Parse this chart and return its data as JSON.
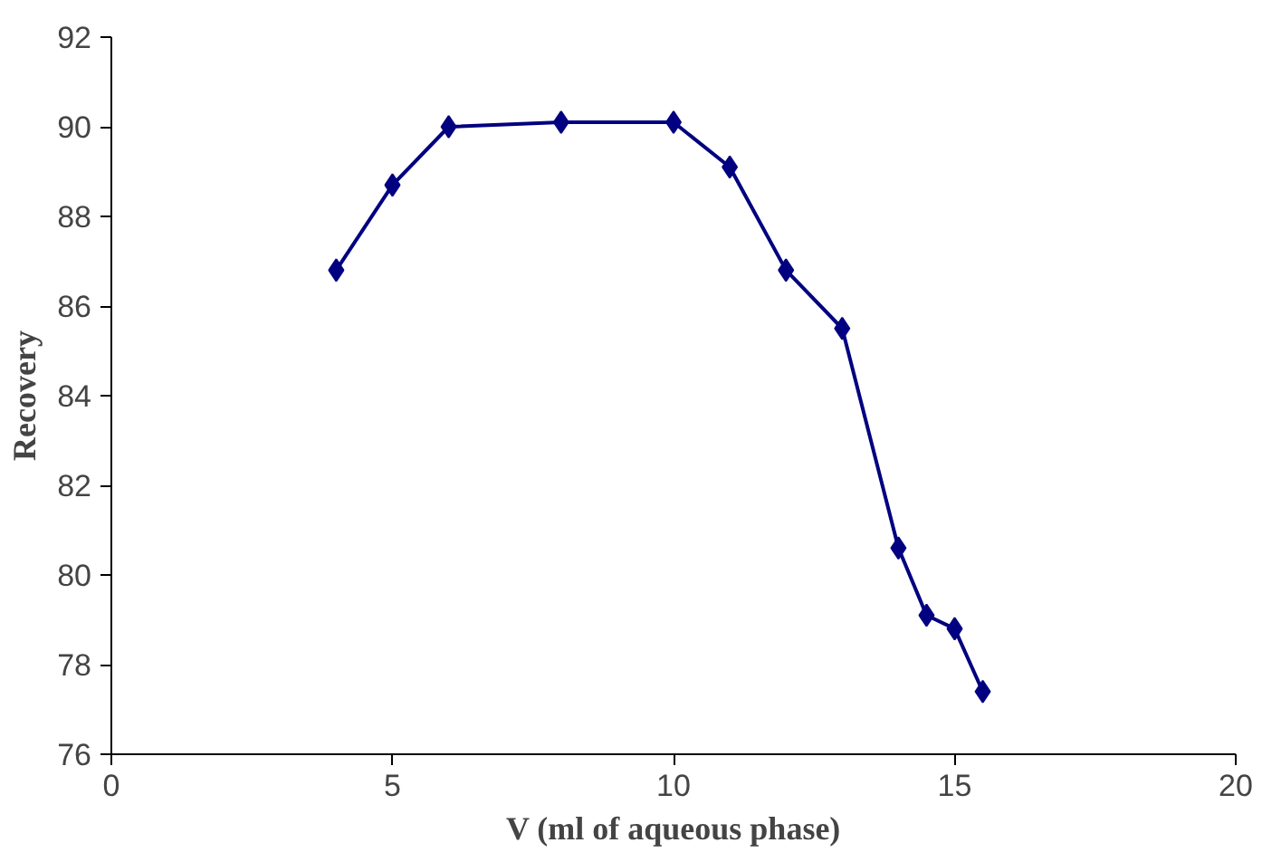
{
  "chart_data": {
    "type": "line",
    "xlabel": "V (ml of aqueous phase)",
    "ylabel": "Recovery",
    "x": [
      4,
      5,
      6,
      8,
      10,
      11,
      12,
      13,
      14,
      14.5,
      15,
      15.5
    ],
    "series": [
      {
        "color": "#000080",
        "values": [
          86.8,
          88.7,
          90.0,
          90.1,
          90.1,
          89.1,
          86.8,
          85.5,
          80.6,
          79.1,
          78.8,
          77.4
        ]
      }
    ],
    "xlim": [
      0,
      20
    ],
    "xticks": [
      0,
      5,
      10,
      15,
      20
    ],
    "ylim": [
      76,
      92
    ],
    "yticks": [
      76,
      78,
      80,
      82,
      84,
      86,
      88,
      90,
      92
    ],
    "grid": false,
    "marker": "diamond",
    "line_style": "solid"
  }
}
